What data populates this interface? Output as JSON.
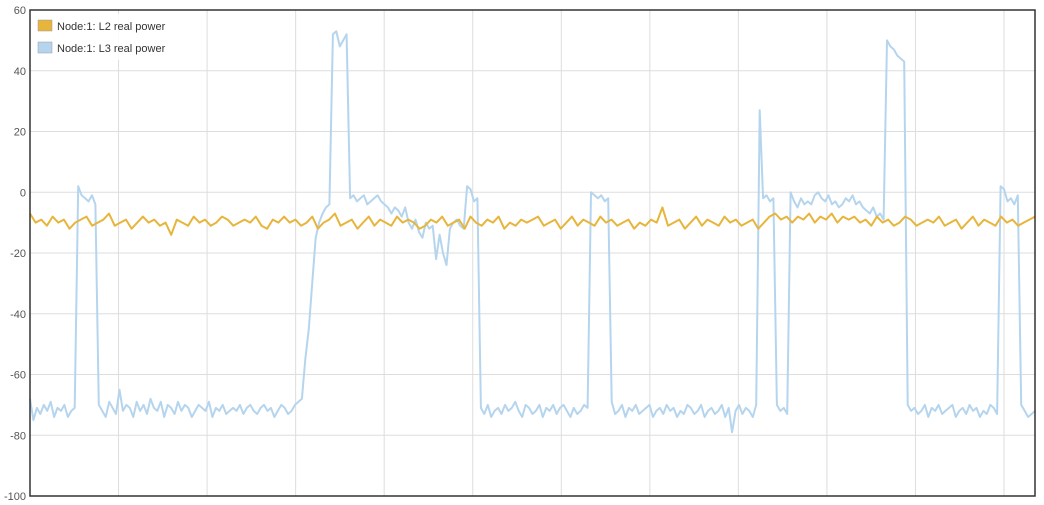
{
  "chart_data": {
    "type": "line",
    "title": "",
    "xlabel": "",
    "ylabel": "",
    "ylim": [
      -100,
      60
    ],
    "yticks": [
      -100,
      -80,
      -60,
      -40,
      -20,
      0,
      20,
      40,
      60
    ],
    "grid": true,
    "legend_position": "top-left",
    "series": [
      {
        "name": "Node:1: L2 real power",
        "color": "#e8b53c",
        "values": [
          -7,
          -10,
          -9,
          -11,
          -8,
          -10,
          -9,
          -12,
          -10,
          -9,
          -8,
          -11,
          -10,
          -9,
          -7,
          -11,
          -10,
          -9,
          -12,
          -10,
          -8,
          -10,
          -9,
          -11,
          -10,
          -14,
          -9,
          -10,
          -11,
          -8,
          -10,
          -9,
          -11,
          -10,
          -8,
          -9,
          -11,
          -10,
          -9,
          -10,
          -8,
          -11,
          -12,
          -9,
          -10,
          -8,
          -10,
          -9,
          -11,
          -10,
          -8,
          -12,
          -10,
          -9,
          -7,
          -11,
          -10,
          -9,
          -12,
          -10,
          -8,
          -11,
          -9,
          -10,
          -11,
          -8,
          -10,
          -9,
          -10,
          -12,
          -11,
          -9,
          -10,
          -8,
          -11,
          -10,
          -9,
          -12,
          -8,
          -10,
          -11,
          -9,
          -10,
          -8,
          -12,
          -10,
          -11,
          -9,
          -10,
          -9,
          -8,
          -11,
          -10,
          -9,
          -12,
          -10,
          -8,
          -11,
          -9,
          -10,
          -11,
          -8,
          -10,
          -9,
          -11,
          -10,
          -9,
          -12,
          -10,
          -11,
          -9,
          -10,
          -5,
          -11,
          -10,
          -9,
          -12,
          -10,
          -8,
          -11,
          -9,
          -10,
          -11,
          -8,
          -10,
          -9,
          -11,
          -10,
          -9,
          -12,
          -10,
          -8,
          -7,
          -9,
          -8,
          -10,
          -8,
          -9,
          -7,
          -10,
          -8,
          -9,
          -7,
          -10,
          -8,
          -9,
          -8,
          -10,
          -9,
          -11,
          -8,
          -10,
          -9,
          -11,
          -10,
          -8,
          -9,
          -11,
          -10,
          -9,
          -10,
          -8,
          -11,
          -10,
          -9,
          -12,
          -10,
          -8,
          -11,
          -9,
          -10,
          -11,
          -8,
          -10,
          -9,
          -11,
          -10,
          -9,
          -8
        ]
      },
      {
        "name": "Node:1: L3 real power",
        "color": "#b5d5ee",
        "values": [
          -68,
          -75,
          -71,
          -73,
          -70,
          -72,
          -69,
          -74,
          -71,
          -72,
          -70,
          -74,
          -72,
          -71,
          2,
          -1,
          -2,
          -3,
          -1,
          -4,
          -70,
          -72,
          -74,
          -69,
          -71,
          -73,
          -65,
          -72,
          -70,
          -71,
          -74,
          -69,
          -72,
          -70,
          -73,
          -68,
          -71,
          -72,
          -69,
          -74,
          -70,
          -71,
          -73,
          -69,
          -72,
          -70,
          -71,
          -74,
          -72,
          -70,
          -71,
          -72,
          -69,
          -74,
          -71,
          -72,
          -70,
          -73,
          -72,
          -71,
          -72,
          -70,
          -73,
          -71,
          -70,
          -72,
          -73,
          -71,
          -70,
          -72,
          -71,
          -74,
          -72,
          -70,
          -71,
          -73,
          -72,
          -70,
          -69,
          -68,
          -55,
          -45,
          -30,
          -15,
          -10,
          -7,
          -5,
          -4,
          52,
          53,
          48,
          50,
          52,
          -2,
          -1,
          -3,
          -2,
          -1,
          -4,
          -3,
          -2,
          -1,
          -3,
          -4,
          -5,
          -7,
          -5,
          -6,
          -8,
          -5,
          -10,
          -12,
          -9,
          -13,
          -15,
          -10,
          -12,
          -11,
          -22,
          -14,
          -20,
          -24,
          -12,
          -10,
          -9,
          -11,
          -12,
          2,
          1,
          -3,
          -2,
          -71,
          -73,
          -70,
          -74,
          -72,
          -71,
          -73,
          -70,
          -72,
          -71,
          -69,
          -72,
          -74,
          -70,
          -71,
          -73,
          -72,
          -70,
          -74,
          -71,
          -72,
          -70,
          -73,
          -71,
          -70,
          -72,
          -74,
          -71,
          -73,
          -72,
          -70,
          -71,
          0,
          -1,
          -2,
          -1,
          -3,
          -2,
          -69,
          -73,
          -72,
          -70,
          -74,
          -71,
          -72,
          -70,
          -73,
          -72,
          -71,
          -70,
          -74,
          -72,
          -71,
          -73,
          -70,
          -72,
          -71,
          -74,
          -72,
          -73,
          -70,
          -71,
          -73,
          -72,
          -70,
          -74,
          -72,
          -71,
          -73,
          -72,
          -70,
          -74,
          -71,
          -79,
          -72,
          -70,
          -73,
          -71,
          -72,
          -74,
          -70,
          27,
          -2,
          -1,
          -3,
          -2,
          -70,
          -72,
          -71,
          -73,
          0,
          -3,
          -5,
          -2,
          -4,
          -3,
          -4,
          -1,
          0,
          -2,
          -3,
          -1,
          -4,
          -3,
          -5,
          -4,
          -2,
          -3,
          -1,
          -4,
          -3,
          -5,
          -6,
          -7,
          -5,
          -8,
          -7,
          -9,
          50,
          48,
          47,
          45,
          44,
          43,
          -70,
          -72,
          -71,
          -73,
          -72,
          -70,
          -74,
          -71,
          -72,
          -70,
          -73,
          -72,
          -71,
          -70,
          -74,
          -72,
          -71,
          -73,
          -70,
          -72,
          -71,
          -74,
          -72,
          -73,
          -70,
          -71,
          -73,
          2,
          1,
          -3,
          -2,
          -4,
          -1,
          -70,
          -72,
          -74,
          -73,
          -72
        ]
      }
    ]
  },
  "legend": {
    "items": [
      {
        "label": "Node:1: L2 real power",
        "color": "#e8b53c"
      },
      {
        "label": "Node:1: L3 real power",
        "color": "#b5d5ee"
      }
    ]
  }
}
